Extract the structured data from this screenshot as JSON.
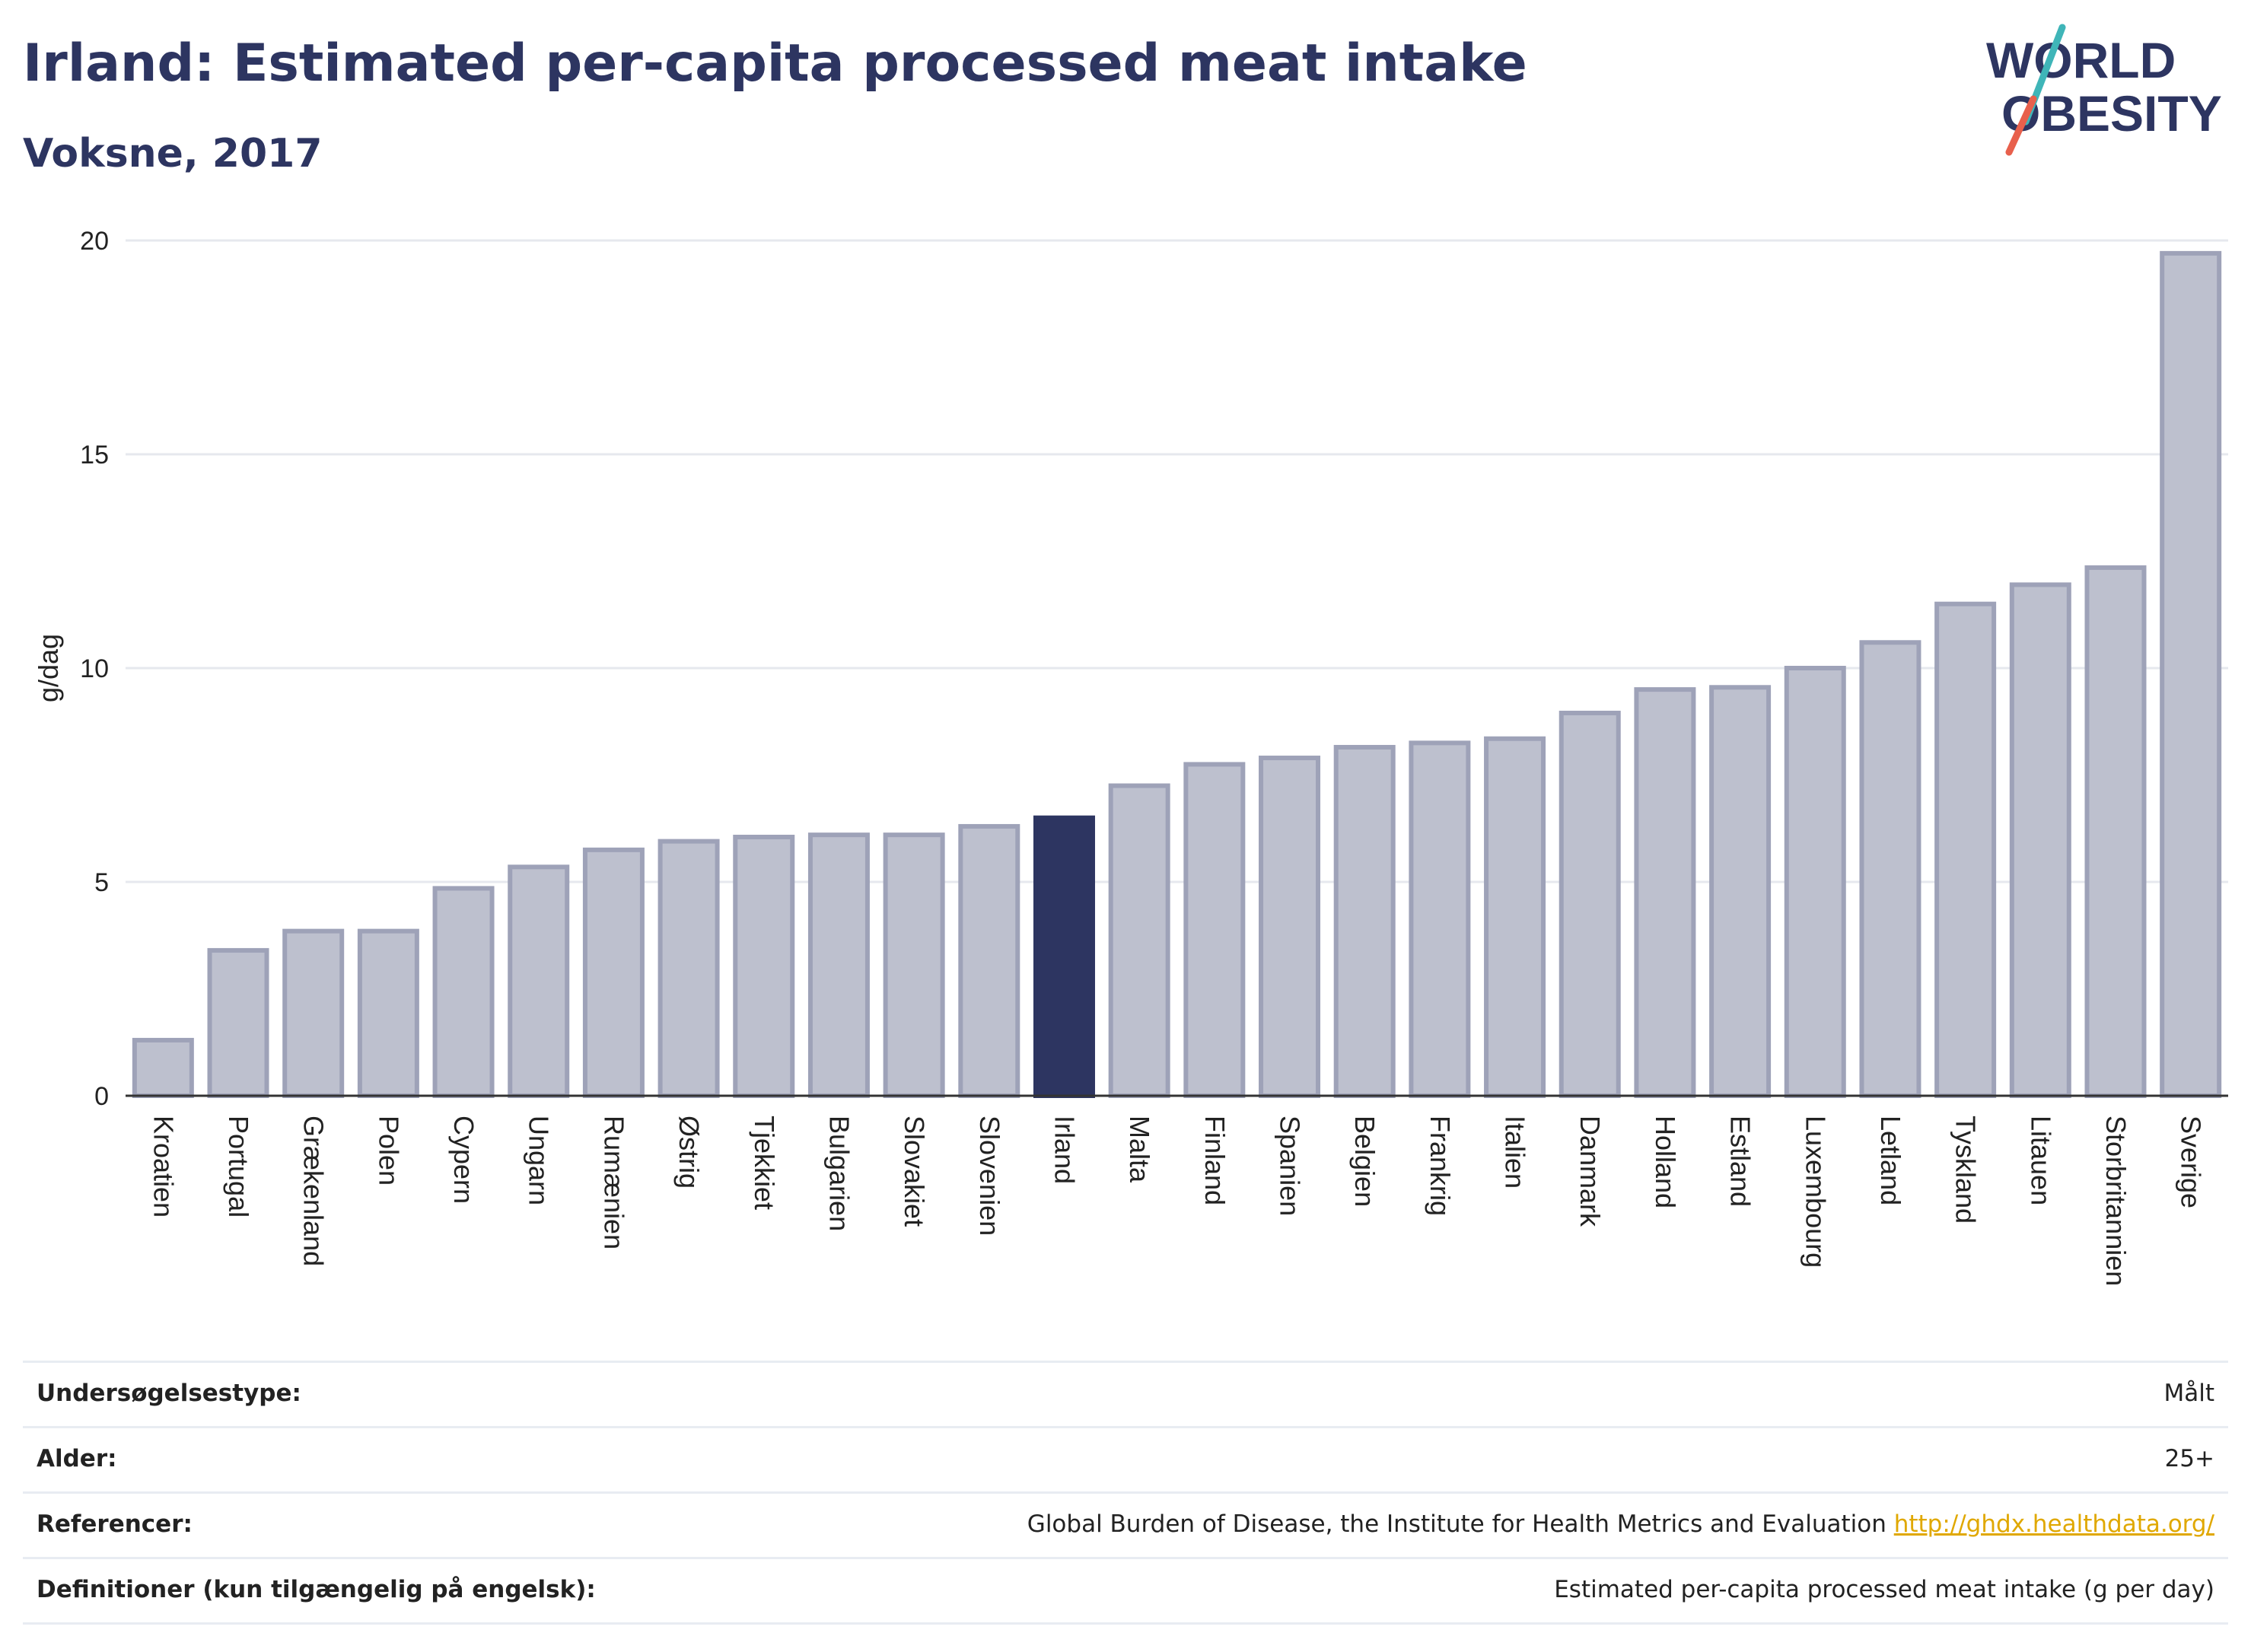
{
  "header": {
    "title": "Irland: Estimated per-capita processed meat intake",
    "subtitle": "Voksne, 2017"
  },
  "logo": {
    "line1": "WORLD",
    "line2": "OBESITY"
  },
  "colors": {
    "bar": "#bdc0ce",
    "bar_border": "#9ea2b8",
    "highlight": "#2d3561",
    "title": "#2d3561",
    "link": "#e0a800",
    "logo_teal": "#3fb5b8",
    "logo_red": "#e8604c"
  },
  "chart_data": {
    "type": "bar",
    "ylabel": "g/dag",
    "xlabel": "",
    "ylim": [
      0,
      20
    ],
    "yticks": [
      0,
      5,
      10,
      15,
      20
    ],
    "grid": true,
    "highlight": "Irland",
    "categories": [
      "Kroatien",
      "Portugal",
      "Grækenland",
      "Polen",
      "Cypern",
      "Ungarn",
      "Rumænien",
      "Østrig",
      "Tjekkiet",
      "Bulgarien",
      "Slovakiet",
      "Slovenien",
      "Irland",
      "Malta",
      "Finland",
      "Spanien",
      "Belgien",
      "Frankrig",
      "Italien",
      "Danmark",
      "Holland",
      "Estland",
      "Luxembourg",
      "Letland",
      "Tyskland",
      "Litauen",
      "Storbritannien",
      "Sverige"
    ],
    "values": [
      1.3,
      3.4,
      3.85,
      3.85,
      4.85,
      5.35,
      5.75,
      5.95,
      6.05,
      6.1,
      6.1,
      6.3,
      6.5,
      7.25,
      7.75,
      7.9,
      8.15,
      8.25,
      8.35,
      8.95,
      9.5,
      9.55,
      10.0,
      10.6,
      11.5,
      11.95,
      12.35,
      19.7
    ]
  },
  "info": {
    "rows": [
      {
        "label": "Undersøgelsestype:",
        "value": "Målt"
      },
      {
        "label": "Alder:",
        "value": "25+"
      },
      {
        "label": "Referencer:",
        "value": "Global Burden of Disease, the Institute for Health Metrics and Evaluation",
        "link": "http://ghdx.healthdata.org/"
      },
      {
        "label": "Definitioner (kun tilgængelig på engelsk):",
        "value": "Estimated per-capita processed meat intake (g per day)"
      }
    ]
  }
}
